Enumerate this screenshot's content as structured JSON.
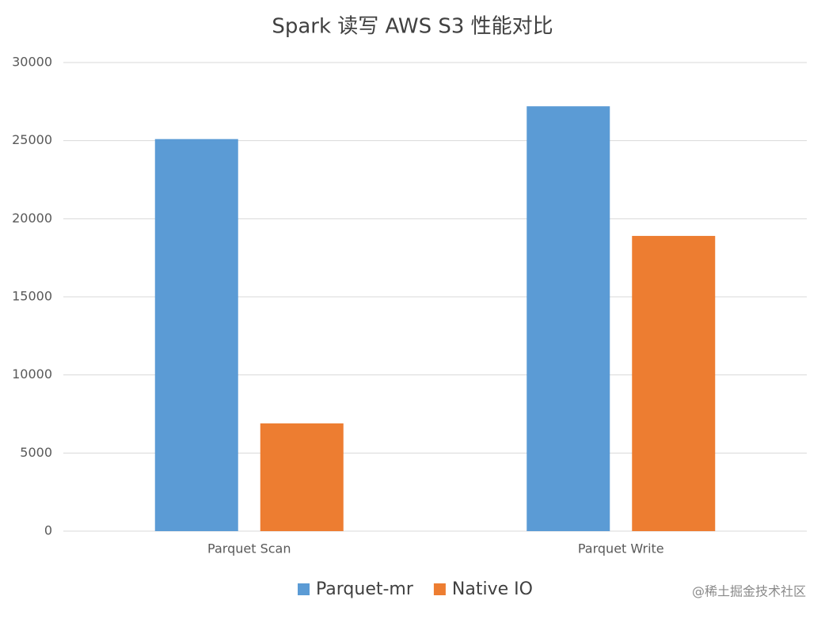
{
  "chart_data": {
    "type": "bar",
    "title": "Spark 读写 AWS S3 性能对比",
    "categories": [
      "Parquet Scan",
      "Parquet Write"
    ],
    "series": [
      {
        "name": "Parquet-mr",
        "color": "#5b9bd5",
        "values": [
          25100,
          27200
        ]
      },
      {
        "name": "Native IO",
        "color": "#ed7d31",
        "values": [
          6900,
          18900
        ]
      }
    ],
    "ylim": [
      0,
      30000
    ],
    "yticks": [
      0,
      5000,
      10000,
      15000,
      20000,
      25000,
      30000
    ],
    "grid": true,
    "legend": "bottom",
    "watermark": "@稀土掘金技术社区"
  }
}
